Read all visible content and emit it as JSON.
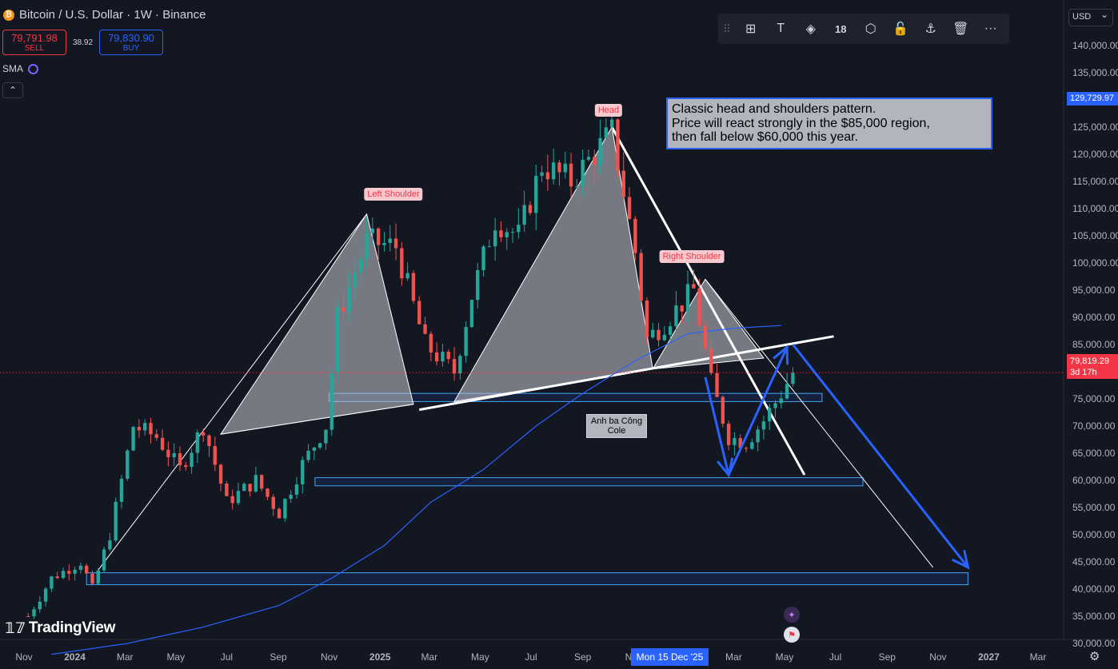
{
  "header": {
    "title": "Bitcoin / U.S. Dollar · 1W · Binance",
    "logo_glyph": "₿",
    "sell_price": "79,791.98",
    "sell_label": "SELL",
    "buy_price": "79,830.90",
    "buy_label": "BUY",
    "spread": "38.92",
    "indicator": "SMA",
    "collapse_glyph": "⌃"
  },
  "toolbar": {
    "items": [
      "drag-handle-icon",
      "layout-icon",
      "text-icon",
      "fill-icon",
      "size",
      "settings-icon",
      "lock-icon",
      "anchor-icon",
      "trash-icon",
      "more-icon"
    ],
    "size_value": "18",
    "glyphs": {
      "drag": "⠿",
      "layout": "⊞",
      "text": "T",
      "fill": "◈",
      "settings": "⬡",
      "lock": "🔓",
      "anchor": "⚓",
      "trash": "🗑",
      "more": "···"
    }
  },
  "currency": "USD",
  "annotation": {
    "lines": [
      "Classic head and shoulders pattern.",
      "Price will react strongly in the $85,000 region,",
      "then fall below $60,000 this year."
    ]
  },
  "labels": {
    "head": "Head",
    "left_shoulder": "Left Shoulder",
    "right_shoulder": "Right Shoulder",
    "note_line1": "Anh ba Công",
    "note_line2": "Cole"
  },
  "price_labels": {
    "blue_line": "129,729.97",
    "current": "79,819.29",
    "countdown": "3d 17h"
  },
  "crosshair_date": "Mon 15 Dec '25",
  "branding": "TradingView",
  "colors": {
    "background": "#131722",
    "up": "#26a69a",
    "down": "#ef5350",
    "sma": "#2962ff",
    "accent_blue": "#2962ff",
    "zone_border": "#42a5f5"
  },
  "chart_data": {
    "type": "candlestick",
    "title": "Bitcoin / U.S. Dollar · 1W · Binance",
    "x_ticks": [
      "Nov",
      "2024",
      "Mar",
      "May",
      "Jul",
      "Sep",
      "Nov",
      "2025",
      "Mar",
      "May",
      "Jul",
      "Sep",
      "Nov",
      "Mar",
      "May",
      "Jul",
      "Sep",
      "Nov",
      "2027",
      "Mar"
    ],
    "y_ticks": [
      30000,
      35000,
      40000,
      45000,
      50000,
      55000,
      60000,
      65000,
      70000,
      75000,
      80000,
      85000,
      90000,
      95000,
      100000,
      105000,
      110000,
      115000,
      120000,
      125000,
      130000,
      135000,
      140000
    ],
    "ylim": [
      26000,
      143000
    ],
    "price_axis": "right",
    "grid": false,
    "close_path": [
      [
        "2023-11-06",
        35000
      ],
      [
        "2023-12-04",
        42000
      ],
      [
        "2024-01-08",
        45000
      ],
      [
        "2024-01-22",
        40000
      ],
      [
        "2024-02-12",
        50000
      ],
      [
        "2024-03-11",
        70000
      ],
      [
        "2024-04-08",
        68000
      ],
      [
        "2024-05-06",
        62000
      ],
      [
        "2024-06-03",
        70000
      ],
      [
        "2024-07-01",
        56000
      ],
      [
        "2024-08-05",
        60000
      ],
      [
        "2024-09-02",
        54000
      ],
      [
        "2024-09-30",
        63000
      ],
      [
        "2024-10-28",
        70000
      ],
      [
        "2024-11-11",
        90000
      ],
      [
        "2024-12-16",
        104000
      ],
      [
        "2025-01-20",
        103000
      ],
      [
        "2025-02-24",
        85000
      ],
      [
        "2025-03-31",
        80000
      ],
      [
        "2025-04-21",
        94000
      ],
      [
        "2025-05-19",
        108000
      ],
      [
        "2025-06-16",
        105000
      ],
      [
        "2025-07-14",
        118000
      ],
      [
        "2025-08-18",
        115000
      ],
      [
        "2025-10-06",
        124000
      ],
      [
        "2025-11-03",
        102000
      ],
      [
        "2025-11-17",
        86000
      ],
      [
        "2025-12-08",
        89000
      ],
      [
        "2026-01-12",
        95000
      ],
      [
        "2026-02-02",
        78000
      ],
      [
        "2026-02-23",
        68000
      ],
      [
        "2026-03-16",
        67000
      ],
      [
        "2026-04-06",
        71000
      ],
      [
        "2026-04-27",
        76000
      ],
      [
        "2026-05-11",
        79819.29
      ]
    ],
    "sma_series": [
      [
        "2023-12-04",
        28000
      ],
      [
        "2024-03-04",
        30000
      ],
      [
        "2024-06-03",
        33000
      ],
      [
        "2024-09-02",
        37000
      ],
      [
        "2024-11-04",
        42000
      ],
      [
        "2025-01-06",
        48000
      ],
      [
        "2025-03-03",
        56000
      ],
      [
        "2025-05-05",
        62000
      ],
      [
        "2025-07-07",
        70000
      ],
      [
        "2025-09-01",
        76000
      ],
      [
        "2025-11-03",
        82000
      ],
      [
        "2026-01-05",
        87000
      ],
      [
        "2026-03-02",
        88000
      ],
      [
        "2026-04-27",
        88500
      ]
    ],
    "pattern": {
      "left_shoulder": [
        "2024-12-16",
        109000
      ],
      "head": [
        "2025-10-06",
        125000
      ],
      "right_shoulder": [
        "2026-01-26",
        97000
      ],
      "neckline": [
        [
          "2025-02-17",
          73000
        ],
        [
          "2026-06-29",
          86500
        ]
      ]
    },
    "zones": [
      {
        "from": "2024-11-01",
        "to": "2026-06-15",
        "low": 74500,
        "high": 76000
      },
      {
        "from": "2024-10-15",
        "to": "2026-08-03",
        "low": 59000,
        "high": 60500
      },
      {
        "from": "2024-01-15",
        "to": "2026-12-07",
        "low": 40800,
        "high": 43000
      }
    ],
    "projection": [
      [
        "2026-05-11",
        85000
      ],
      [
        "2026-12-07",
        44000
      ]
    ],
    "current_price": 79819.29,
    "current_label_price": 79819.29,
    "blue_label_price": 129729.97
  }
}
